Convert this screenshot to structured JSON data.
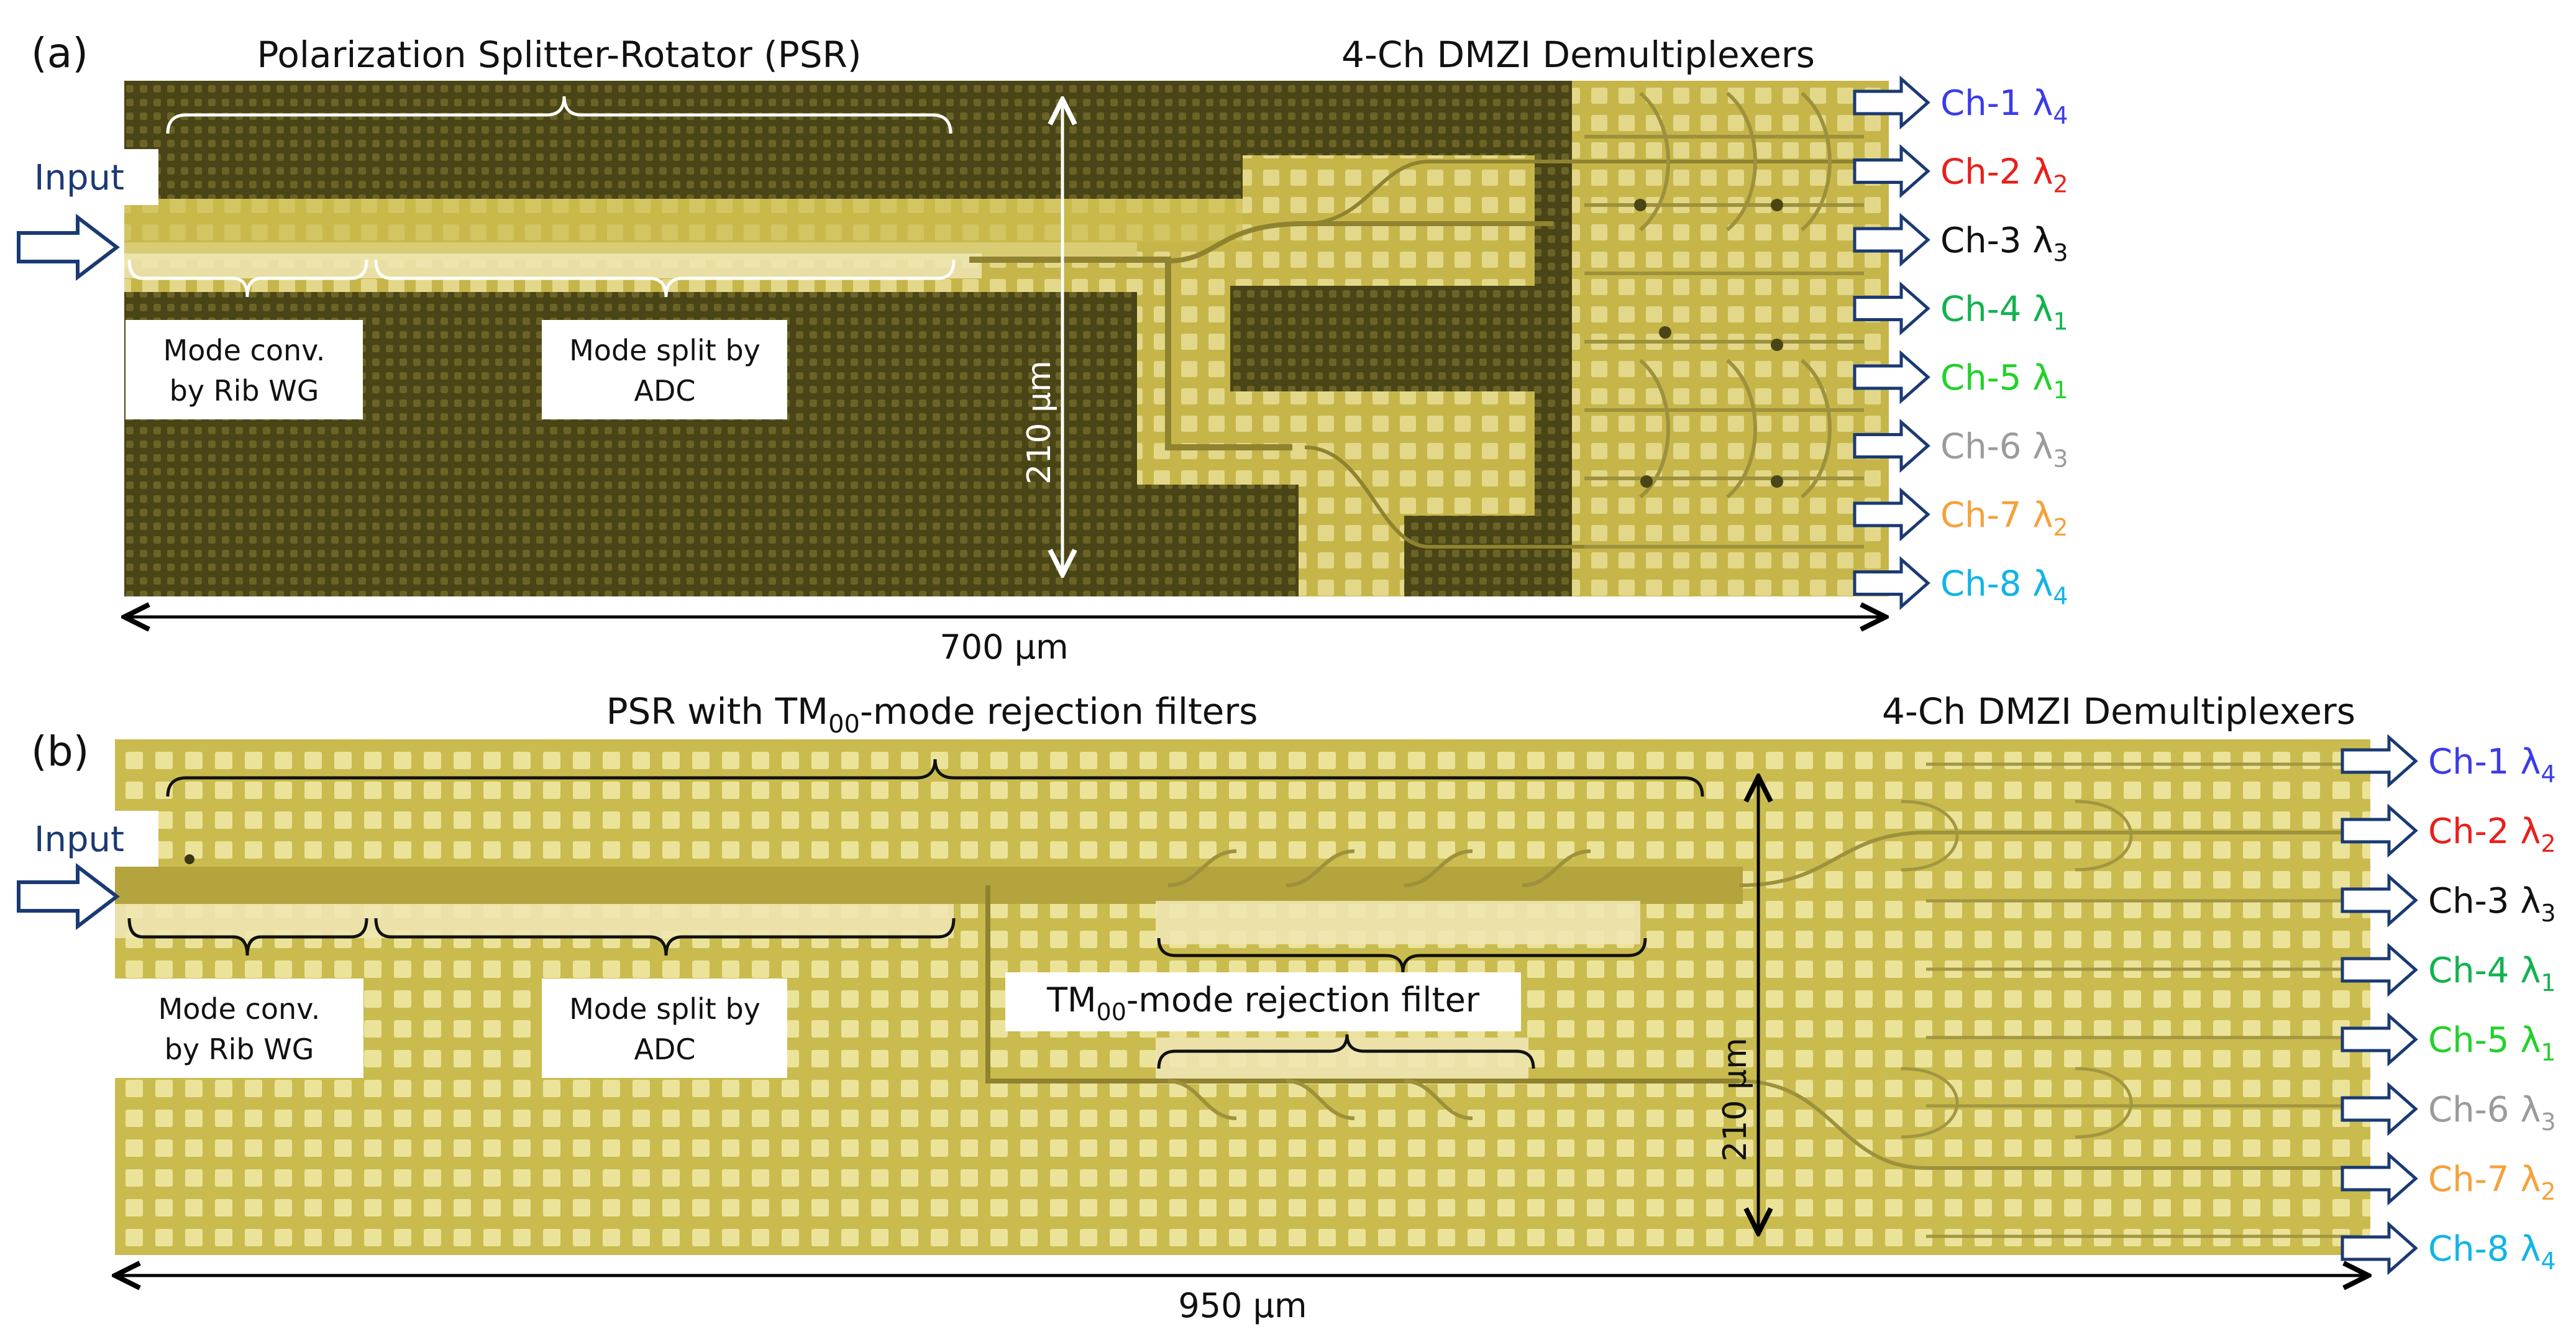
{
  "panel_a": {
    "tag": "(a)",
    "title_psr": "Polarization Splitter-Rotator (PSR)",
    "title_dmux": "4-Ch DMZI Demultiplexers",
    "input_label": "Input",
    "mode_conv_line1": "Mode conv.",
    "mode_conv_line2": "by Rib WG",
    "mode_split_line1": "Mode split by",
    "mode_split_line2": "ADC",
    "height_label": "210 μm",
    "width_label": "700 μm"
  },
  "panel_b": {
    "tag": "(b)",
    "title_psr_prefix": "PSR with TM",
    "title_psr_sub": "00",
    "title_psr_suffix": "-mode rejection filters",
    "title_dmux": "4-Ch DMZI Demultiplexers",
    "input_label": "Input",
    "mode_conv_line1": "Mode conv.",
    "mode_conv_line2": "by Rib WG",
    "mode_split_line1": "Mode split by",
    "mode_split_line2": "ADC",
    "filter_prefix": "TM",
    "filter_sub": "00",
    "filter_suffix": "-mode rejection filter",
    "height_label": "210 μm",
    "width_label": "950 μm"
  },
  "channels": [
    {
      "name": "Ch-1",
      "lambda": "λ",
      "sub": "4",
      "color": "#3b3bea"
    },
    {
      "name": "Ch-2",
      "lambda": "λ",
      "sub": "2",
      "color": "#e8201c"
    },
    {
      "name": "Ch-3",
      "lambda": "λ",
      "sub": "3",
      "color": "#111111"
    },
    {
      "name": "Ch-4",
      "lambda": "λ",
      "sub": "1",
      "color": "#12b24e"
    },
    {
      "name": "Ch-5",
      "lambda": "λ",
      "sub": "1",
      "color": "#22d12a"
    },
    {
      "name": "Ch-6",
      "lambda": "λ",
      "sub": "3",
      "color": "#9b9b9b"
    },
    {
      "name": "Ch-7",
      "lambda": "λ",
      "sub": "2",
      "color": "#f5a13c"
    },
    {
      "name": "Ch-8",
      "lambda": "λ",
      "sub": "4",
      "color": "#12b4e6"
    }
  ],
  "colors": {
    "chip_light": "#cdbf54",
    "chip_dark": "#4f4a18",
    "arrow_outline": "#1b3a73"
  }
}
